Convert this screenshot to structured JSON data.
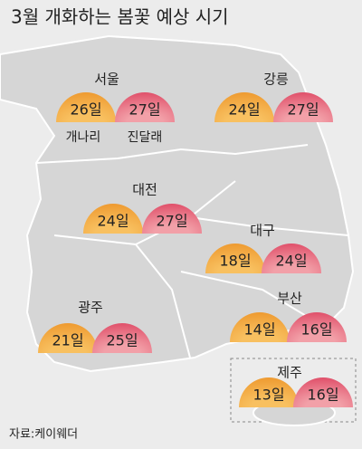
{
  "title": "3월 개화하는 봄꽃 예상 시기",
  "legend": [
    "개나리",
    "진달래"
  ],
  "cities": [
    {
      "name": "서울",
      "forsythia": "26일",
      "azalea": "27일"
    },
    {
      "name": "강릉",
      "forsythia": "24일",
      "azalea": "27일"
    },
    {
      "name": "대전",
      "forsythia": "24일",
      "azalea": "27일"
    },
    {
      "name": "대구",
      "forsythia": "18일",
      "azalea": "24일"
    },
    {
      "name": "광주",
      "forsythia": "21일",
      "azalea": "25일"
    },
    {
      "name": "부산",
      "forsythia": "14일",
      "azalea": "16일"
    },
    {
      "name": "제주",
      "forsythia": "13일",
      "azalea": "16일"
    }
  ],
  "source": "자료:케이웨더"
}
